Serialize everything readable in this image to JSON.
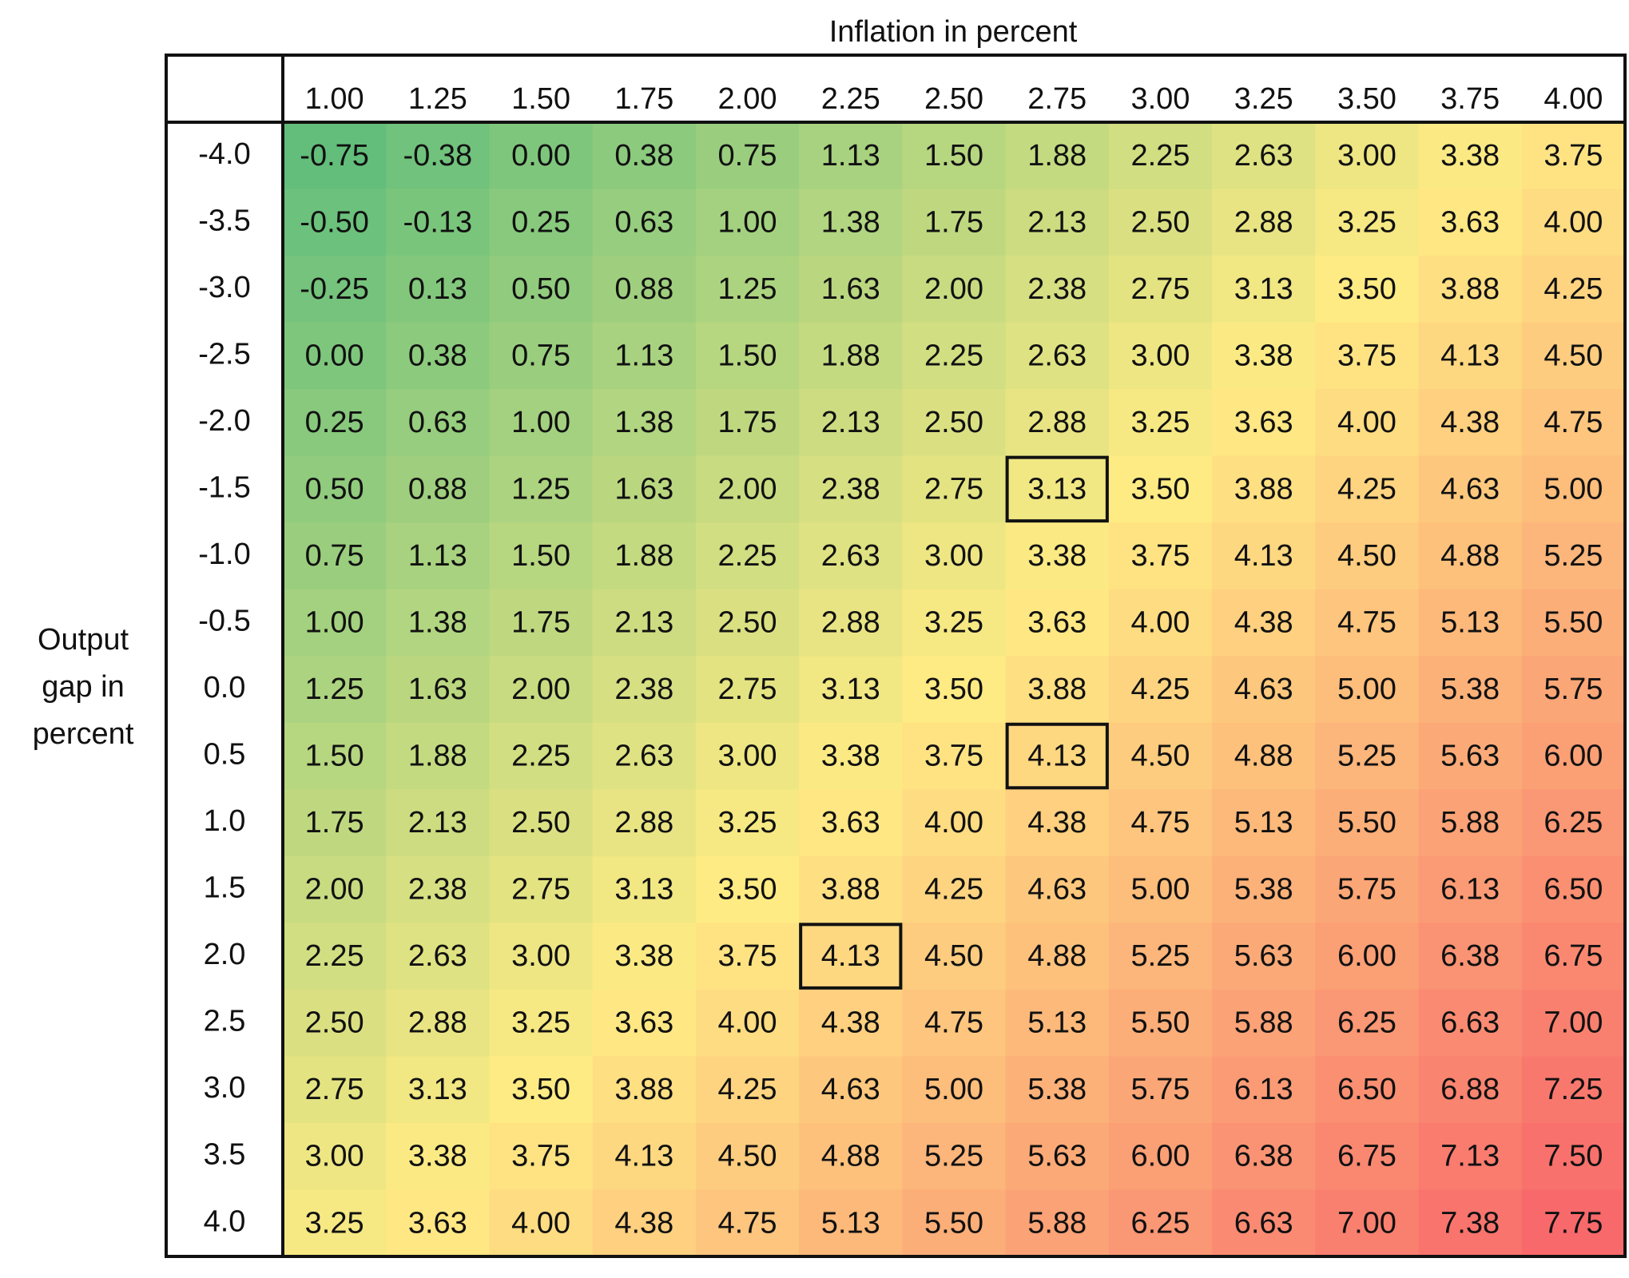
{
  "title": "Inflation in percent",
  "row_axis_label": [
    "Output",
    "gap in",
    "percent"
  ],
  "table": {
    "columns": [
      "1.00",
      "1.25",
      "1.50",
      "1.75",
      "2.00",
      "2.25",
      "2.50",
      "2.75",
      "3.00",
      "3.25",
      "3.50",
      "3.75",
      "4.00"
    ],
    "rows": [
      {
        "label": "-4.0",
        "cells": [
          "-0.75",
          "-0.38",
          "0.00",
          "0.38",
          "0.75",
          "1.13",
          "1.50",
          "1.88",
          "2.25",
          "2.63",
          "3.00",
          "3.38",
          "3.75"
        ]
      },
      {
        "label": "-3.5",
        "cells": [
          "-0.50",
          "-0.13",
          "0.25",
          "0.63",
          "1.00",
          "1.38",
          "1.75",
          "2.13",
          "2.50",
          "2.88",
          "3.25",
          "3.63",
          "4.00"
        ]
      },
      {
        "label": "-3.0",
        "cells": [
          "-0.25",
          "0.13",
          "0.50",
          "0.88",
          "1.25",
          "1.63",
          "2.00",
          "2.38",
          "2.75",
          "3.13",
          "3.50",
          "3.88",
          "4.25"
        ]
      },
      {
        "label": "-2.5",
        "cells": [
          "0.00",
          "0.38",
          "0.75",
          "1.13",
          "1.50",
          "1.88",
          "2.25",
          "2.63",
          "3.00",
          "3.38",
          "3.75",
          "4.13",
          "4.50"
        ]
      },
      {
        "label": "-2.0",
        "cells": [
          "0.25",
          "0.63",
          "1.00",
          "1.38",
          "1.75",
          "2.13",
          "2.50",
          "2.88",
          "3.25",
          "3.63",
          "4.00",
          "4.38",
          "4.75"
        ]
      },
      {
        "label": "-1.5",
        "cells": [
          "0.50",
          "0.88",
          "1.25",
          "1.63",
          "2.00",
          "2.38",
          "2.75",
          "3.13",
          "3.50",
          "3.88",
          "4.25",
          "4.63",
          "5.00"
        ]
      },
      {
        "label": "-1.0",
        "cells": [
          "0.75",
          "1.13",
          "1.50",
          "1.88",
          "2.25",
          "2.63",
          "3.00",
          "3.38",
          "3.75",
          "4.13",
          "4.50",
          "4.88",
          "5.25"
        ]
      },
      {
        "label": "-0.5",
        "cells": [
          "1.00",
          "1.38",
          "1.75",
          "2.13",
          "2.50",
          "2.88",
          "3.25",
          "3.63",
          "4.00",
          "4.38",
          "4.75",
          "5.13",
          "5.50"
        ]
      },
      {
        "label": "0.0",
        "cells": [
          "1.25",
          "1.63",
          "2.00",
          "2.38",
          "2.75",
          "3.13",
          "3.50",
          "3.88",
          "4.25",
          "4.63",
          "5.00",
          "5.38",
          "5.75"
        ]
      },
      {
        "label": "0.5",
        "cells": [
          "1.50",
          "1.88",
          "2.25",
          "2.63",
          "3.00",
          "3.38",
          "3.75",
          "4.13",
          "4.50",
          "4.88",
          "5.25",
          "5.63",
          "6.00"
        ]
      },
      {
        "label": "1.0",
        "cells": [
          "1.75",
          "2.13",
          "2.50",
          "2.88",
          "3.25",
          "3.63",
          "4.00",
          "4.38",
          "4.75",
          "5.13",
          "5.50",
          "5.88",
          "6.25"
        ]
      },
      {
        "label": "1.5",
        "cells": [
          "2.00",
          "2.38",
          "2.75",
          "3.13",
          "3.50",
          "3.88",
          "4.25",
          "4.63",
          "5.00",
          "5.38",
          "5.75",
          "6.13",
          "6.50"
        ]
      },
      {
        "label": "2.0",
        "cells": [
          "2.25",
          "2.63",
          "3.00",
          "3.38",
          "3.75",
          "4.13",
          "4.50",
          "4.88",
          "5.25",
          "5.63",
          "6.00",
          "6.38",
          "6.75"
        ]
      },
      {
        "label": "2.5",
        "cells": [
          "2.50",
          "2.88",
          "3.25",
          "3.63",
          "4.00",
          "4.38",
          "4.75",
          "5.13",
          "5.50",
          "5.88",
          "6.25",
          "6.63",
          "7.00"
        ]
      },
      {
        "label": "3.0",
        "cells": [
          "2.75",
          "3.13",
          "3.50",
          "3.88",
          "4.25",
          "4.63",
          "5.00",
          "5.38",
          "5.75",
          "6.13",
          "6.50",
          "6.88",
          "7.25"
        ]
      },
      {
        "label": "3.5",
        "cells": [
          "3.00",
          "3.38",
          "3.75",
          "4.13",
          "4.50",
          "4.88",
          "5.25",
          "5.63",
          "6.00",
          "6.38",
          "6.75",
          "7.13",
          "7.50"
        ]
      },
      {
        "label": "4.0",
        "cells": [
          "3.25",
          "3.63",
          "4.00",
          "4.38",
          "4.75",
          "5.13",
          "5.50",
          "5.88",
          "6.25",
          "6.63",
          "7.00",
          "7.38",
          "7.75"
        ]
      }
    ]
  }
}
